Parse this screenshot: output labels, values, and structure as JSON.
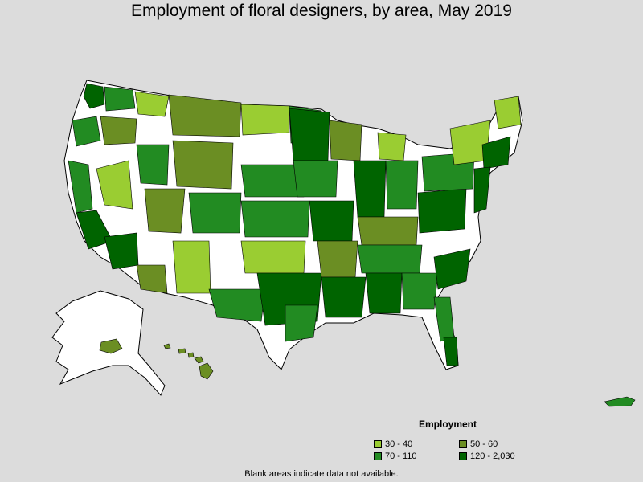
{
  "title": "Employment of floral designers, by area, May 2019",
  "legend": {
    "heading": "Employment",
    "items": [
      {
        "label": "30 - 40",
        "color": "#9acd32"
      },
      {
        "label": "50 - 60",
        "color": "#6b8e23"
      },
      {
        "label": "70 - 110",
        "color": "#228b22"
      },
      {
        "label": "120 - 2,030",
        "color": "#006400"
      }
    ]
  },
  "footnote": "Blank areas indicate data not available.",
  "colors": {
    "background": "#dcdcdc",
    "no_data": "#ffffff",
    "border": "#000000"
  }
}
